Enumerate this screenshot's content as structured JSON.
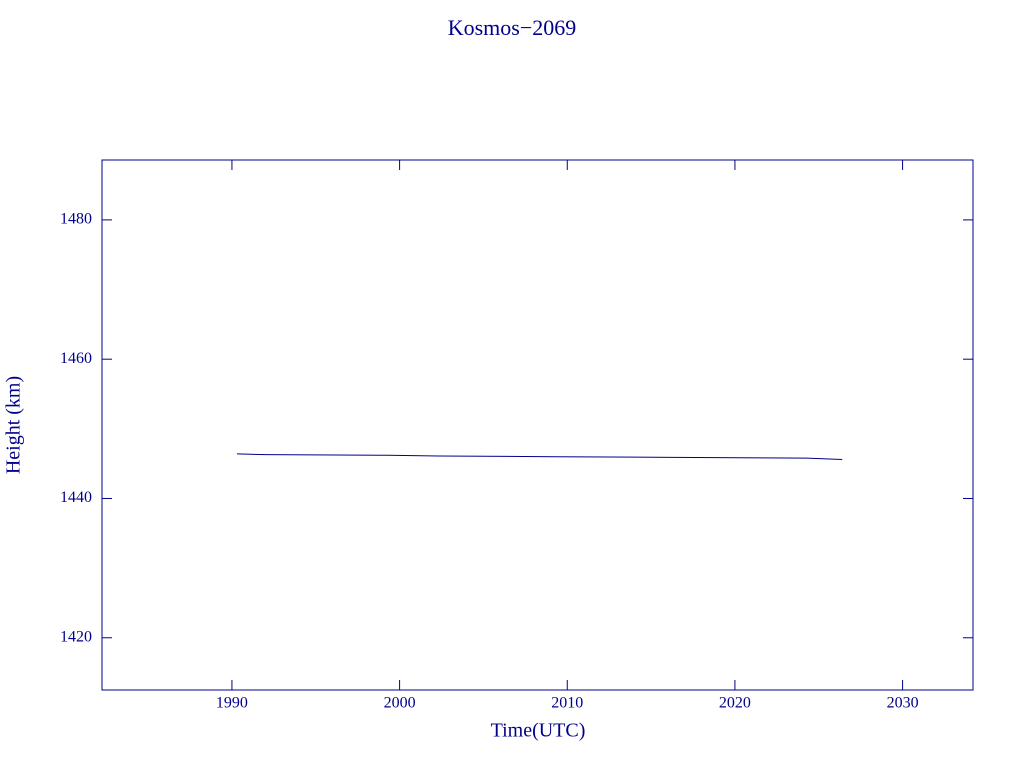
{
  "chart_data": {
    "type": "line",
    "title": "Kosmos−2069",
    "x_label": "Time(UTC)",
    "y_label": "Height (km)",
    "x": [
      1990.3,
      1992.0,
      1999.3,
      2002.3,
      2009.3,
      2016.3,
      2024.3,
      2026.4
    ],
    "series": [
      {
        "color": "#00008b",
        "values": [
          1446.4,
          1446.3,
          1446.2,
          1446.1,
          1446.0,
          1445.9,
          1445.8,
          1445.6
        ]
      }
    ],
    "xlim": [
      1982.25,
      2034.2
    ],
    "xticks": [
      1990,
      2000,
      2010,
      2020,
      2030
    ],
    "ylim": [
      1412.5,
      1488.6
    ],
    "yticks": [
      1420,
      1440,
      1460,
      1480
    ],
    "frame_color": "#00008b"
  }
}
